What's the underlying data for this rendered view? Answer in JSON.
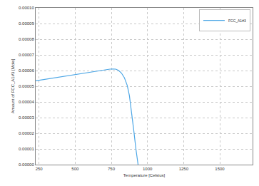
{
  "chart_data": {
    "type": "line",
    "x_label": "Temperature [Celsius]",
    "y_label": "Amount of FCC_A1#3 [Mole]",
    "series": [
      {
        "name": "FCC_A1#3",
        "color": "#4ea7e6",
        "line_style": "solid",
        "x": [
          226.85,
          300,
          400,
          500,
          600,
          700,
          740,
          760,
          780,
          800,
          820,
          840,
          860,
          875,
          890,
          905,
          920,
          935
        ],
        "values": [
          5.35e-05,
          5.46e-05,
          5.61e-05,
          5.76e-05,
          5.9e-05,
          6.04e-05,
          6.09e-05,
          6.1e-05,
          6.09e-05,
          6.01e-05,
          5.84e-05,
          5.55e-05,
          5.05e-05,
          4.4e-05,
          3.4e-05,
          2.2e-05,
          1e-05,
          0.0
        ]
      }
    ],
    "xlim": [
      226.85,
      1726.85
    ],
    "xticks": [
      250,
      500,
      750,
      1000,
      1250,
      1500
    ],
    "ylim": [
      0,
      0.0001
    ],
    "yticks": [
      {
        "value": 0,
        "label": "0.00000"
      },
      {
        "value": 1e-05,
        "label": "0.00001"
      },
      {
        "value": 2e-05,
        "label": "0.00002"
      },
      {
        "value": 3e-05,
        "label": "0.00003"
      },
      {
        "value": 4e-05,
        "label": "0.00004"
      },
      {
        "value": 5e-05,
        "label": "0.00005"
      },
      {
        "value": 6e-05,
        "label": "0.00006"
      },
      {
        "value": 7e-05,
        "label": "0.00007"
      },
      {
        "value": 8e-05,
        "label": "0.00008"
      },
      {
        "value": 9e-05,
        "label": "0.00009"
      },
      {
        "value": 0.0001,
        "label": "0.00010"
      }
    ],
    "grid": true,
    "legend": "top right"
  }
}
